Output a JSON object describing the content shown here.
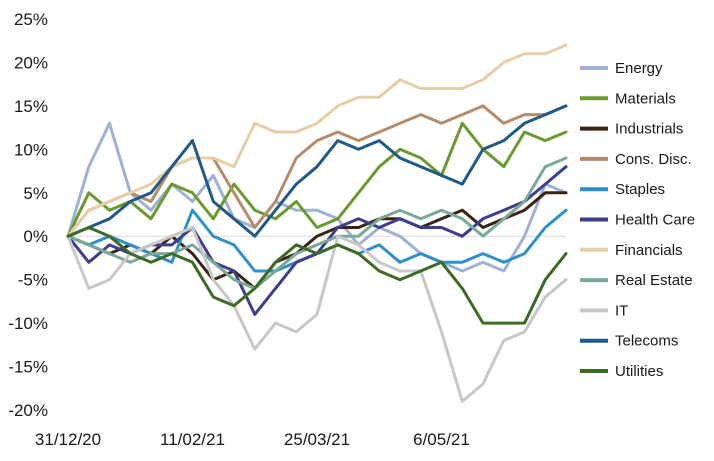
{
  "chart_data": {
    "type": "line",
    "title": "",
    "xlabel": "",
    "ylabel": "",
    "grid": false,
    "legend_placement": "right",
    "ylim": [
      -20,
      25
    ],
    "yticks": [
      "25%",
      "20%",
      "15%",
      "10%",
      "5%",
      "0%",
      "-5%",
      "-10%",
      "-15%",
      "-20%"
    ],
    "xticks": [
      "31/12/20",
      "11/02/21",
      "25/03/21",
      "6/05/21"
    ],
    "x_dates": [
      "31/12/20",
      "7/01/21",
      "14/01/21",
      "21/01/21",
      "28/01/21",
      "4/02/21",
      "11/02/21",
      "18/02/21",
      "25/02/21",
      "4/03/21",
      "11/03/21",
      "18/03/21",
      "25/03/21",
      "1/04/21",
      "8/04/21",
      "15/04/21",
      "22/04/21",
      "29/04/21",
      "6/05/21",
      "13/05/21",
      "20/05/21",
      "27/05/21",
      "3/06/21",
      "10/06/21",
      "17/06/21"
    ],
    "series": [
      {
        "name": "Energy",
        "color": "#9db2d4",
        "values": [
          0,
          8,
          13,
          5,
          3,
          6,
          4,
          7,
          2,
          1,
          4,
          3,
          3,
          2,
          -1,
          1,
          0,
          -2,
          -3,
          -4,
          -3,
          -4,
          0,
          6,
          5
        ]
      },
      {
        "name": "Materials",
        "color": "#6b9a2e",
        "values": [
          0,
          5,
          3,
          4,
          2,
          6,
          5,
          2,
          6,
          3,
          2,
          4,
          1,
          2,
          5,
          8,
          10,
          9,
          7,
          13,
          10,
          8,
          12,
          11,
          12
        ]
      },
      {
        "name": "Industrials",
        "color": "#3b2414",
        "values": [
          0,
          -1,
          -2,
          -1,
          -2,
          0,
          -2,
          -5,
          -4,
          -6,
          -3,
          -2,
          0,
          1,
          1,
          2,
          2,
          1,
          2,
          3,
          1,
          2,
          3,
          5,
          5
        ]
      },
      {
        "name": "Cons. Disc.",
        "color": "#b68d6c",
        "values": [
          0,
          3,
          4,
          5,
          4,
          8,
          9,
          9,
          5,
          1,
          4,
          9,
          11,
          12,
          11,
          12,
          13,
          14,
          13,
          14,
          15,
          13,
          14,
          14,
          15
        ]
      },
      {
        "name": "Staples",
        "color": "#2f8fcc",
        "values": [
          0,
          -1,
          0,
          -1,
          -2,
          -3,
          3,
          0,
          -1,
          -4,
          -4,
          -3,
          -2,
          -1,
          -2,
          -1,
          -3,
          -2,
          -3,
          -3,
          -2,
          -3,
          -2,
          1,
          3
        ]
      },
      {
        "name": "Health Care",
        "color": "#3c3f8f",
        "values": [
          0,
          -3,
          -1,
          -2,
          -1,
          -1,
          1,
          -3,
          -4,
          -9,
          -6,
          -3,
          -2,
          1,
          2,
          1,
          2,
          1,
          1,
          0,
          2,
          3,
          4,
          6,
          8
        ]
      },
      {
        "name": "Financials",
        "color": "#e6cfa6",
        "values": [
          0,
          3,
          4,
          5,
          6,
          8,
          9,
          9,
          8,
          13,
          12,
          12,
          13,
          15,
          16,
          16,
          18,
          17,
          17,
          17,
          18,
          20,
          21,
          21,
          22
        ]
      },
      {
        "name": "Real Estate",
        "color": "#7aaa97",
        "values": [
          0,
          -1,
          -2,
          -3,
          -2,
          -2,
          -1,
          -3,
          -5,
          -6,
          -4,
          -2,
          -1,
          0,
          0,
          2,
          3,
          2,
          3,
          2,
          0,
          2,
          4,
          8,
          9
        ]
      },
      {
        "name": "IT",
        "color": "#c8c8c8",
        "values": [
          0,
          -6,
          -5,
          -2,
          -1,
          0,
          1,
          -5,
          -8,
          -13,
          -10,
          -11,
          -9,
          0,
          -1,
          -3,
          -4,
          -4,
          -11,
          -19,
          -17,
          -12,
          -11,
          -7,
          -5
        ]
      },
      {
        "name": "Telecoms",
        "color": "#1f5a8a",
        "values": [
          0,
          1,
          2,
          4,
          5,
          8,
          11,
          4,
          2,
          0,
          3,
          6,
          8,
          11,
          10,
          11,
          9,
          8,
          7,
          6,
          10,
          11,
          13,
          14,
          15
        ]
      },
      {
        "name": "Utilities",
        "color": "#3d6b25",
        "values": [
          0,
          1,
          0,
          -2,
          -3,
          -2,
          -3,
          -7,
          -8,
          -6,
          -3,
          -1,
          -2,
          -1,
          -2,
          -4,
          -5,
          -4,
          -3,
          -6,
          -10,
          -10,
          -10,
          -5,
          -2
        ]
      }
    ]
  }
}
